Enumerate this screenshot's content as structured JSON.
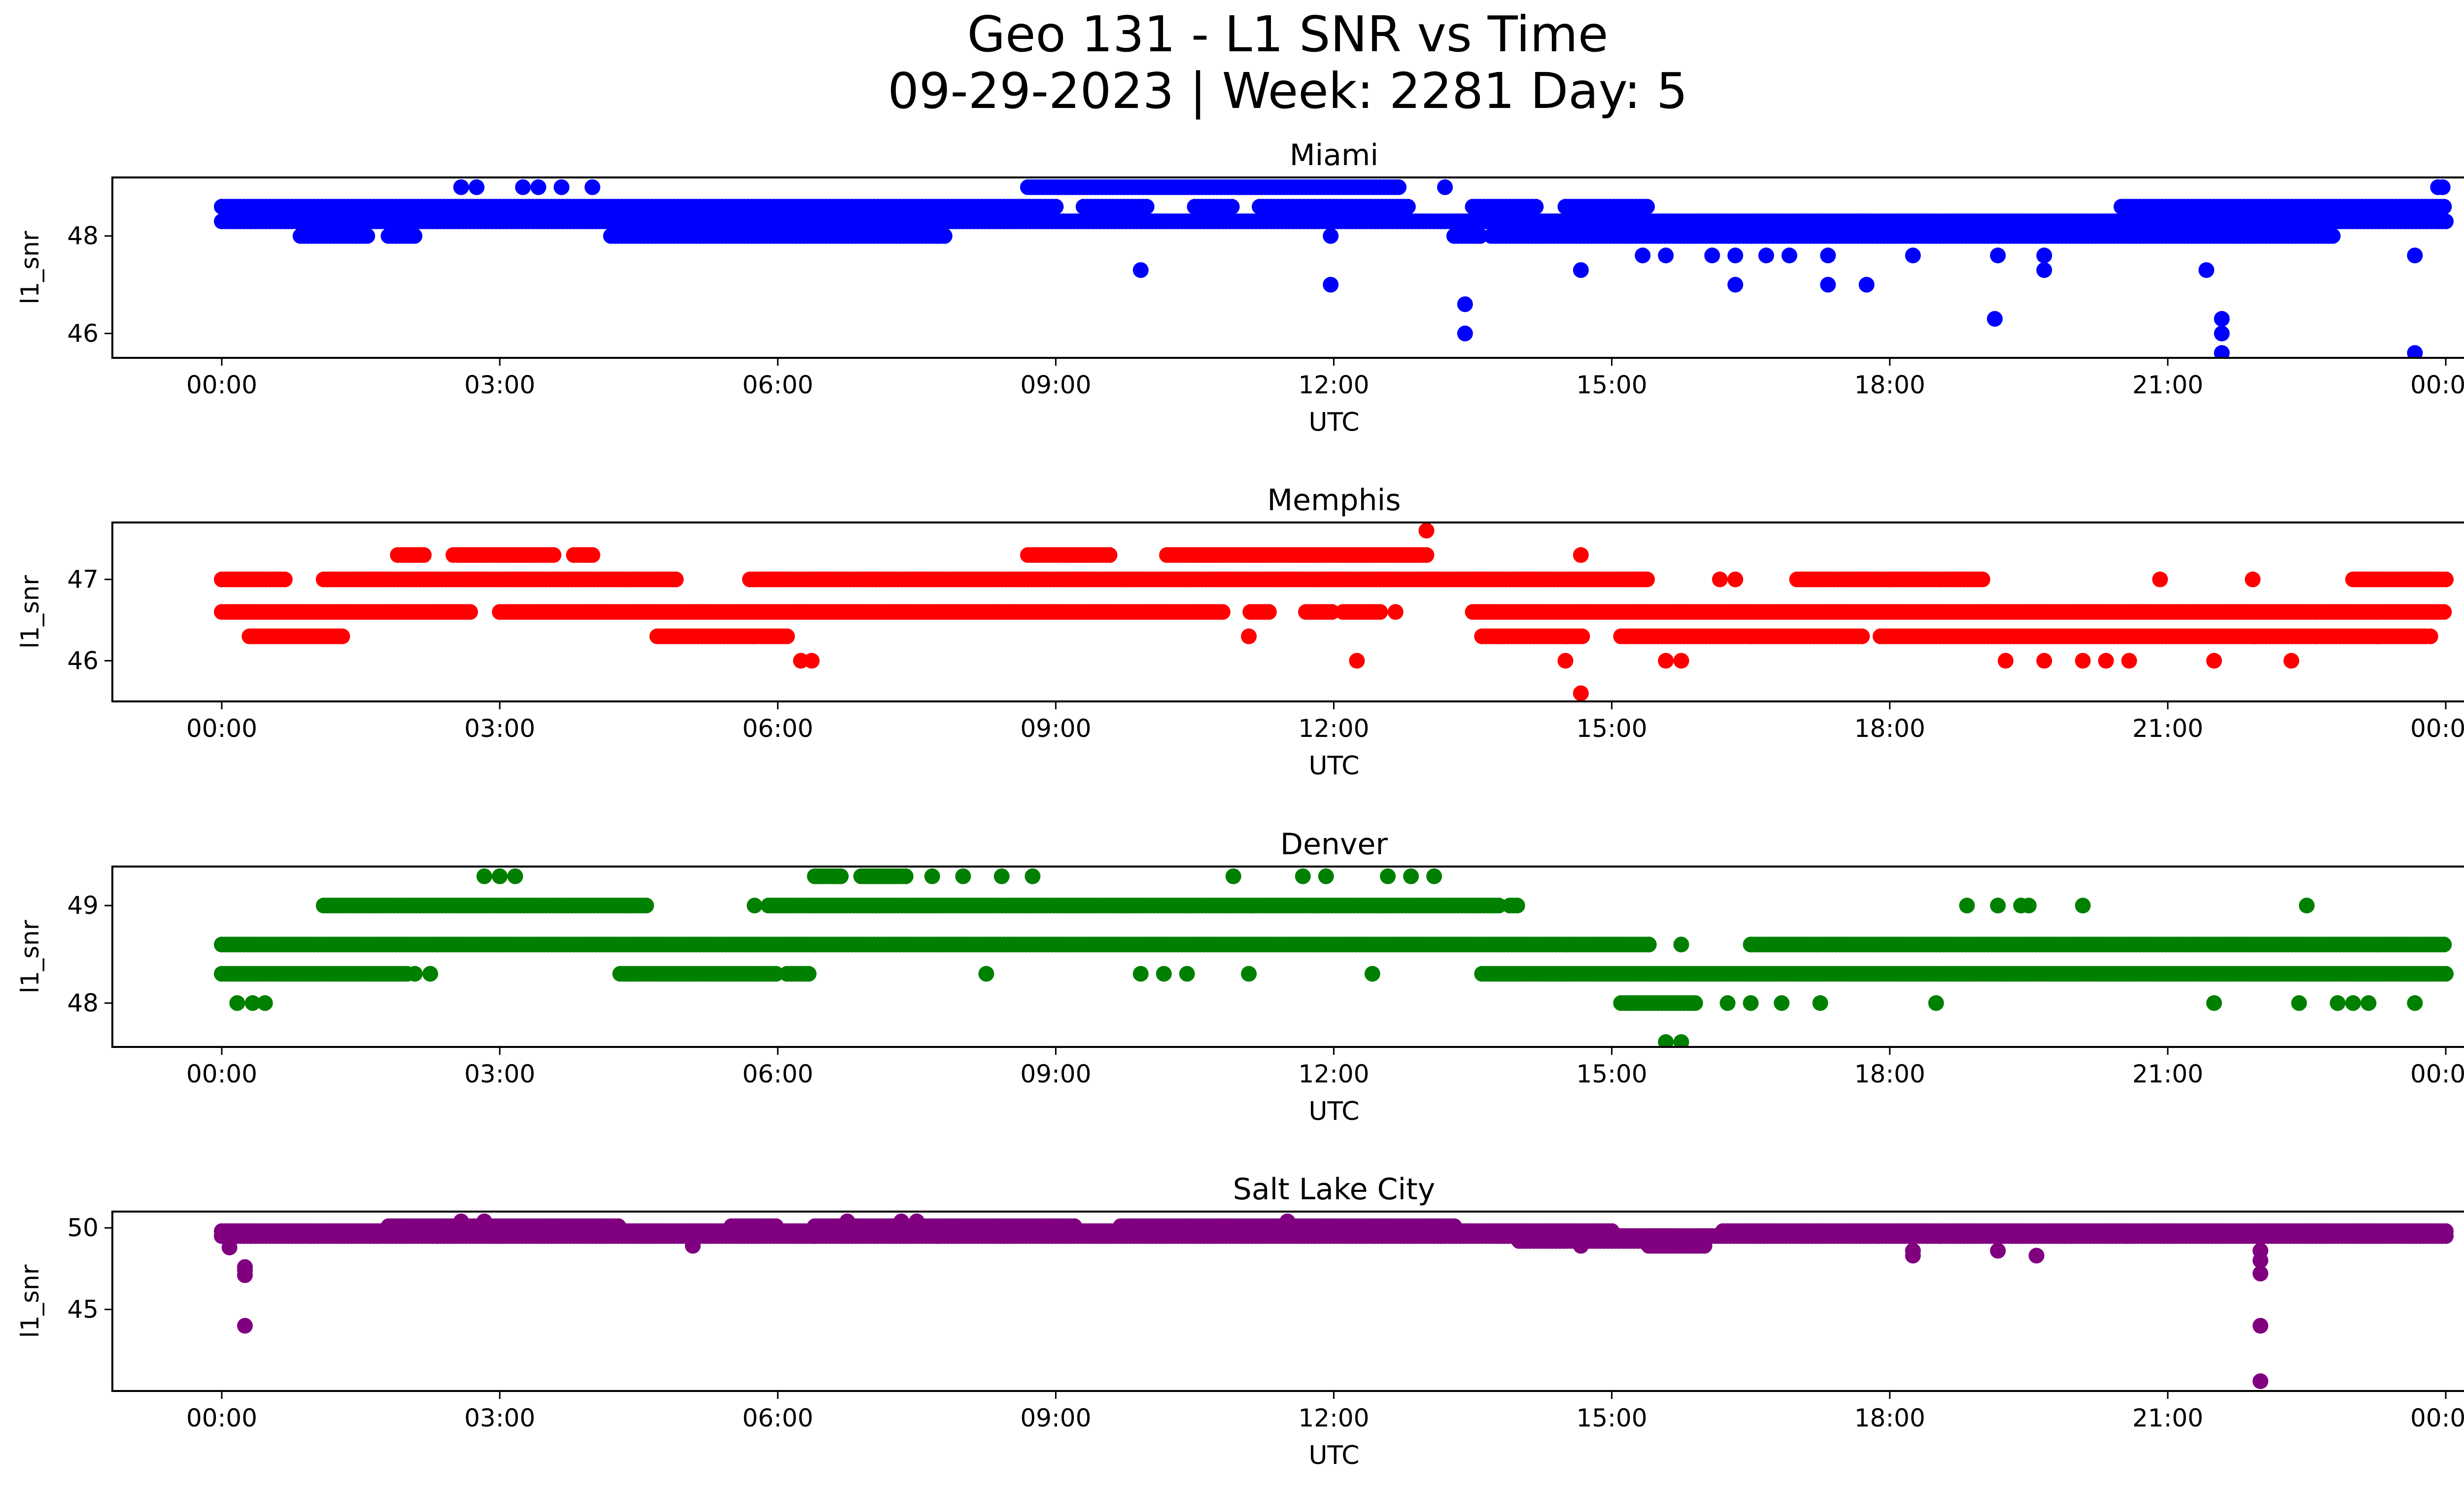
{
  "figure": {
    "title_line1": "Geo 131 - L1 SNR vs Time",
    "title_line2": "09-29-2023 | Week: 2281 Day: 5"
  },
  "chart_data": [
    {
      "type": "scatter",
      "title": "Miami",
      "xlabel": "UTC",
      "ylabel": "l1_snr",
      "color": "#0000ff",
      "xlim": [
        "00:00",
        "24:00"
      ],
      "ylim": [
        45.5,
        49.2
      ],
      "x_ticks": [
        "00:00",
        "03:00",
        "06:00",
        "09:00",
        "12:00",
        "15:00",
        "18:00",
        "21:00",
        "00:00"
      ],
      "y_ticks": [
        46,
        48
      ],
      "bands": [
        {
          "y": 48.6,
          "ranges": [
            [
              0.0,
              9.0
            ],
            [
              9.3,
              10.0
            ],
            [
              10.5,
              10.9
            ],
            [
              11.2,
              12.8
            ],
            [
              13.5,
              14.2
            ],
            [
              14.5,
              15.4
            ],
            [
              20.5,
              24.0
            ]
          ]
        },
        {
          "y": 48.3,
          "ranges": [
            [
              0.0,
              24.0
            ]
          ]
        },
        {
          "y": 48.0,
          "ranges": [
            [
              0.85,
              1.6
            ],
            [
              1.8,
              2.1
            ],
            [
              4.2,
              7.8
            ],
            [
              13.3,
              13.6
            ],
            [
              13.7,
              22.8
            ]
          ]
        },
        {
          "y": 49.0,
          "ranges": [
            [
              8.7,
              12.7
            ]
          ]
        }
      ],
      "points": [
        {
          "t": "02:35",
          "y": 49.0
        },
        {
          "t": "02:45",
          "y": 49.0
        },
        {
          "t": "03:15",
          "y": 49.0
        },
        {
          "t": "03:25",
          "y": 49.0
        },
        {
          "t": "03:40",
          "y": 49.0
        },
        {
          "t": "04:00",
          "y": 49.0
        },
        {
          "t": "09:55",
          "y": 47.3
        },
        {
          "t": "11:58",
          "y": 48.0
        },
        {
          "t": "11:58",
          "y": 47.0
        },
        {
          "t": "13:12",
          "y": 49.0
        },
        {
          "t": "13:25",
          "y": 46.6
        },
        {
          "t": "13:25",
          "y": 46.0
        },
        {
          "t": "14:40",
          "y": 47.3
        },
        {
          "t": "15:20",
          "y": 47.6
        },
        {
          "t": "15:35",
          "y": 47.6
        },
        {
          "t": "16:05",
          "y": 47.6
        },
        {
          "t": "16:20",
          "y": 47.6
        },
        {
          "t": "16:20",
          "y": 47.0
        },
        {
          "t": "16:40",
          "y": 47.6
        },
        {
          "t": "16:55",
          "y": 47.6
        },
        {
          "t": "17:20",
          "y": 47.6
        },
        {
          "t": "17:20",
          "y": 47.0
        },
        {
          "t": "17:45",
          "y": 47.0
        },
        {
          "t": "18:15",
          "y": 47.6
        },
        {
          "t": "19:08",
          "y": 46.3
        },
        {
          "t": "19:10",
          "y": 47.6
        },
        {
          "t": "19:40",
          "y": 47.3
        },
        {
          "t": "19:40",
          "y": 47.6
        },
        {
          "t": "21:25",
          "y": 47.3
        },
        {
          "t": "21:35",
          "y": 46.3
        },
        {
          "t": "21:35",
          "y": 46.0
        },
        {
          "t": "21:35",
          "y": 45.6
        },
        {
          "t": "23:40",
          "y": 47.6
        },
        {
          "t": "23:40",
          "y": 45.6
        },
        {
          "t": "23:55",
          "y": 49.0
        },
        {
          "t": "23:58",
          "y": 49.0
        }
      ]
    },
    {
      "type": "scatter",
      "title": "Memphis",
      "xlabel": "UTC",
      "ylabel": "l1_snr",
      "color": "#ff0000",
      "xlim": [
        "00:00",
        "24:00"
      ],
      "ylim": [
        45.5,
        47.7
      ],
      "x_ticks": [
        "00:00",
        "03:00",
        "06:00",
        "09:00",
        "12:00",
        "15:00",
        "18:00",
        "21:00",
        "00:00"
      ],
      "y_ticks": [
        46,
        47
      ],
      "bands": [
        {
          "y": 47.3,
          "ranges": [
            [
              1.9,
              2.2
            ],
            [
              2.5,
              3.6
            ],
            [
              3.8,
              4.0
            ],
            [
              8.7,
              9.6
            ],
            [
              10.2,
              13.0
            ]
          ]
        },
        {
          "y": 47.0,
          "ranges": [
            [
              0.0,
              0.7
            ],
            [
              1.1,
              4.9
            ],
            [
              5.7,
              15.4
            ],
            [
              17.0,
              18.0
            ],
            [
              18.0,
              19.0
            ],
            [
              23.0,
              24.0
            ]
          ]
        },
        {
          "y": 46.6,
          "ranges": [
            [
              0.0,
              2.7
            ],
            [
              3.0,
              10.8
            ],
            [
              11.1,
              11.3
            ],
            [
              11.7,
              12.0
            ],
            [
              12.1,
              12.5
            ],
            [
              13.5,
              24.0
            ]
          ]
        },
        {
          "y": 46.3,
          "ranges": [
            [
              0.3,
              1.3
            ],
            [
              4.7,
              6.1
            ],
            [
              13.6,
              14.7
            ],
            [
              15.1,
              17.7
            ],
            [
              17.9,
              23.8
            ]
          ]
        }
      ],
      "points": [
        {
          "t": "06:15",
          "y": 46.0
        },
        {
          "t": "06:22",
          "y": 46.0
        },
        {
          "t": "11:05",
          "y": 46.3
        },
        {
          "t": "12:15",
          "y": 46.0
        },
        {
          "t": "12:40",
          "y": 46.6
        },
        {
          "t": "13:00",
          "y": 47.6
        },
        {
          "t": "14:30",
          "y": 46.0
        },
        {
          "t": "14:40",
          "y": 47.3
        },
        {
          "t": "14:40",
          "y": 45.6
        },
        {
          "t": "15:35",
          "y": 46.0
        },
        {
          "t": "15:45",
          "y": 46.0
        },
        {
          "t": "16:10",
          "y": 47.0
        },
        {
          "t": "16:20",
          "y": 47.0
        },
        {
          "t": "19:15",
          "y": 46.0
        },
        {
          "t": "19:40",
          "y": 46.0
        },
        {
          "t": "20:05",
          "y": 46.0
        },
        {
          "t": "20:20",
          "y": 46.0
        },
        {
          "t": "20:35",
          "y": 46.0
        },
        {
          "t": "20:55",
          "y": 47.0
        },
        {
          "t": "21:30",
          "y": 46.0
        },
        {
          "t": "21:55",
          "y": 47.0
        },
        {
          "t": "22:20",
          "y": 46.0
        },
        {
          "t": "23:50",
          "y": 46.3
        }
      ]
    },
    {
      "type": "scatter",
      "title": "Denver",
      "xlabel": "UTC",
      "ylabel": "l1_snr",
      "color": "#008000",
      "xlim": [
        "00:00",
        "24:00"
      ],
      "ylim": [
        47.55,
        49.4
      ],
      "x_ticks": [
        "00:00",
        "03:00",
        "06:00",
        "09:00",
        "12:00",
        "15:00",
        "18:00",
        "21:00",
        "00:00"
      ],
      "y_ticks": [
        48,
        49
      ],
      "bands": [
        {
          "y": 49.0,
          "ranges": [
            [
              1.1,
              4.6
            ],
            [
              5.9,
              13.8
            ],
            [
              13.9,
              14.0
            ]
          ]
        },
        {
          "y": 48.6,
          "ranges": [
            [
              0.0,
              15.4
            ],
            [
              16.5,
              24.0
            ]
          ]
        },
        {
          "y": 48.3,
          "ranges": [
            [
              0.0,
              2.0
            ],
            [
              4.3,
              6.0
            ],
            [
              6.1,
              6.3
            ],
            [
              13.6,
              24.0
            ]
          ]
        },
        {
          "y": 49.3,
          "ranges": [
            [
              6.4,
              6.7
            ],
            [
              6.9,
              7.4
            ]
          ]
        },
        {
          "y": 48.0,
          "ranges": [
            [
              15.1,
              15.9
            ]
          ]
        }
      ],
      "points": [
        {
          "t": "00:10",
          "y": 48.0
        },
        {
          "t": "00:20",
          "y": 48.0
        },
        {
          "t": "00:28",
          "y": 48.0
        },
        {
          "t": "02:05",
          "y": 48.3
        },
        {
          "t": "02:15",
          "y": 48.3
        },
        {
          "t": "02:50",
          "y": 49.3
        },
        {
          "t": "03:00",
          "y": 49.3
        },
        {
          "t": "03:10",
          "y": 49.3
        },
        {
          "t": "05:45",
          "y": 49.0
        },
        {
          "t": "06:20",
          "y": 48.3
        },
        {
          "t": "07:40",
          "y": 49.3
        },
        {
          "t": "08:00",
          "y": 49.3
        },
        {
          "t": "08:15",
          "y": 48.3
        },
        {
          "t": "08:25",
          "y": 49.3
        },
        {
          "t": "08:45",
          "y": 49.3
        },
        {
          "t": "09:55",
          "y": 48.3
        },
        {
          "t": "10:10",
          "y": 48.3
        },
        {
          "t": "10:25",
          "y": 48.3
        },
        {
          "t": "10:55",
          "y": 49.3
        },
        {
          "t": "11:05",
          "y": 48.3
        },
        {
          "t": "11:40",
          "y": 49.3
        },
        {
          "t": "11:55",
          "y": 49.3
        },
        {
          "t": "12:25",
          "y": 48.3
        },
        {
          "t": "12:35",
          "y": 49.3
        },
        {
          "t": "12:50",
          "y": 49.3
        },
        {
          "t": "13:05",
          "y": 49.3
        },
        {
          "t": "15:35",
          "y": 47.6
        },
        {
          "t": "15:45",
          "y": 47.6
        },
        {
          "t": "15:45",
          "y": 48.6
        },
        {
          "t": "16:15",
          "y": 48.0
        },
        {
          "t": "16:30",
          "y": 48.0
        },
        {
          "t": "16:50",
          "y": 48.0
        },
        {
          "t": "17:15",
          "y": 48.0
        },
        {
          "t": "18:50",
          "y": 49.0
        },
        {
          "t": "19:10",
          "y": 49.0
        },
        {
          "t": "18:30",
          "y": 48.0
        },
        {
          "t": "19:25",
          "y": 49.0
        },
        {
          "t": "19:30",
          "y": 49.0
        },
        {
          "t": "20:05",
          "y": 49.0
        },
        {
          "t": "21:30",
          "y": 48.0
        },
        {
          "t": "22:25",
          "y": 48.0
        },
        {
          "t": "22:30",
          "y": 49.0
        },
        {
          "t": "22:50",
          "y": 48.0
        },
        {
          "t": "23:00",
          "y": 48.0
        },
        {
          "t": "23:10",
          "y": 48.0
        },
        {
          "t": "23:40",
          "y": 48.0
        }
      ]
    },
    {
      "type": "scatter",
      "title": "Salt Lake City",
      "xlabel": "UTC",
      "ylabel": "l1_snr",
      "color": "#800080",
      "xlim": [
        "00:00",
        "24:00"
      ],
      "ylim": [
        40.0,
        51.0
      ],
      "x_ticks": [
        "00:00",
        "03:00",
        "06:00",
        "09:00",
        "12:00",
        "15:00",
        "18:00",
        "21:00",
        "00:00"
      ],
      "y_ticks": [
        45,
        50
      ],
      "bands": [
        {
          "y": 49.5,
          "ranges": [
            [
              0.0,
              24.0
            ]
          ]
        },
        {
          "y": 49.8,
          "ranges": [
            [
              0.0,
              15.0
            ],
            [
              16.2,
              24.0
            ]
          ]
        },
        {
          "y": 50.1,
          "ranges": [
            [
              1.8,
              4.3
            ],
            [
              5.5,
              6.0
            ],
            [
              6.4,
              9.2
            ],
            [
              9.7,
              13.3
            ]
          ]
        },
        {
          "y": 49.2,
          "ranges": [
            [
              14.0,
              15.6
            ],
            [
              15.6,
              16.0
            ]
          ]
        },
        {
          "y": 48.9,
          "ranges": [
            [
              15.4,
              16.0
            ]
          ]
        }
      ],
      "points": [
        {
          "t": "00:05",
          "y": 48.8
        },
        {
          "t": "00:15",
          "y": 47.6
        },
        {
          "t": "00:15",
          "y": 47.1
        },
        {
          "t": "00:15",
          "y": 47.4
        },
        {
          "t": "00:15",
          "y": 44.0
        },
        {
          "t": "02:35",
          "y": 50.4
        },
        {
          "t": "02:50",
          "y": 50.4
        },
        {
          "t": "05:05",
          "y": 48.9
        },
        {
          "t": "06:45",
          "y": 50.4
        },
        {
          "t": "07:20",
          "y": 50.4
        },
        {
          "t": "07:30",
          "y": 50.4
        },
        {
          "t": "11:30",
          "y": 50.4
        },
        {
          "t": "14:40",
          "y": 48.9
        },
        {
          "t": "18:15",
          "y": 48.3
        },
        {
          "t": "18:15",
          "y": 48.6
        },
        {
          "t": "19:10",
          "y": 48.6
        },
        {
          "t": "19:35",
          "y": 48.3
        },
        {
          "t": "22:00",
          "y": 48.6
        },
        {
          "t": "22:00",
          "y": 48.0
        },
        {
          "t": "22:00",
          "y": 47.2
        },
        {
          "t": "22:00",
          "y": 44.0
        },
        {
          "t": "22:00",
          "y": 40.6
        }
      ]
    }
  ]
}
